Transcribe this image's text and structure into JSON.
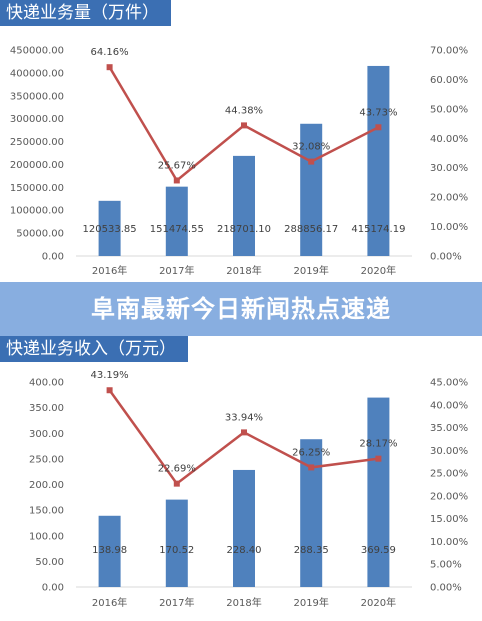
{
  "banner": {
    "text": "阜南最新今日新闻热点速递"
  },
  "colors": {
    "bar": "#4f81bd",
    "line": "#c0504d",
    "title_bg": "#3b6fb3",
    "banner_bg": "#88aee0"
  },
  "chart_data": [
    {
      "type": "bar",
      "title": "快递业务量（万件）",
      "categories": [
        "2016年",
        "2017年",
        "2018年",
        "2019年",
        "2020年"
      ],
      "series": [
        {
          "kind": "bar",
          "values": [
            120533.85,
            151474.55,
            218701.1,
            288856.17,
            415174.19
          ],
          "labels": [
            "120533.85",
            "151474.55",
            "218701.10",
            "288856.17",
            "415174.19"
          ]
        },
        {
          "kind": "line",
          "values": [
            64.16,
            25.67,
            44.38,
            32.08,
            43.73
          ],
          "labels": [
            "64.16%",
            "25.67%",
            "44.38%",
            "32.08%",
            "43.73%"
          ]
        }
      ],
      "ylim": [
        0,
        450000
      ],
      "y_ticks": [
        "0.00",
        "50000.00",
        "100000.00",
        "150000.00",
        "200000.00",
        "250000.00",
        "300000.00",
        "350000.00",
        "400000.00",
        "450000.00"
      ],
      "y2lim": [
        0,
        70
      ],
      "y2_ticks": [
        "0.00%",
        "10.00%",
        "20.00%",
        "30.00%",
        "40.00%",
        "50.00%",
        "60.00%",
        "70.00%"
      ],
      "grid": false,
      "legend": "none"
    },
    {
      "type": "bar",
      "title": "快递业务收入（万元）",
      "categories": [
        "2016年",
        "2017年",
        "2018年",
        "2019年",
        "2020年"
      ],
      "series": [
        {
          "kind": "bar",
          "values": [
            138.98,
            170.52,
            228.4,
            288.35,
            369.59
          ],
          "labels": [
            "138.98",
            "170.52",
            "228.40",
            "288.35",
            "369.59"
          ]
        },
        {
          "kind": "line",
          "values": [
            43.19,
            22.69,
            33.94,
            26.25,
            28.17
          ],
          "labels": [
            "43.19%",
            "22.69%",
            "33.94%",
            "26.25%",
            "28.17%"
          ]
        }
      ],
      "ylim": [
        0,
        400
      ],
      "y_ticks": [
        "0.00",
        "50.00",
        "100.00",
        "150.00",
        "200.00",
        "250.00",
        "300.00",
        "350.00",
        "400.00"
      ],
      "y2lim": [
        0,
        45
      ],
      "y2_ticks": [
        "0.00%",
        "5.00%",
        "10.00%",
        "15.00%",
        "20.00%",
        "25.00%",
        "30.00%",
        "35.00%",
        "40.00%",
        "45.00%"
      ],
      "grid": false,
      "legend": "none"
    }
  ]
}
